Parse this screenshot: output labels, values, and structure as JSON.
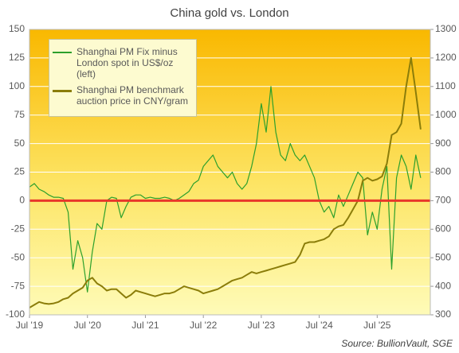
{
  "chart_data": {
    "type": "line",
    "title": "China gold vs. London",
    "source": "Source: BullionVault, SGE",
    "x": [
      "2019-07",
      "2019-08",
      "2019-09",
      "2019-10",
      "2019-11",
      "2019-12",
      "2020-01",
      "2020-02",
      "2020-03",
      "2020-04",
      "2020-05",
      "2020-06",
      "2020-07",
      "2020-08",
      "2020-09",
      "2020-10",
      "2020-11",
      "2020-12",
      "2021-01",
      "2021-02",
      "2021-03",
      "2021-04",
      "2021-05",
      "2021-06",
      "2021-07",
      "2021-08",
      "2021-09",
      "2021-10",
      "2021-11",
      "2021-12",
      "2022-01",
      "2022-02",
      "2022-03",
      "2022-04",
      "2022-05",
      "2022-06",
      "2022-07",
      "2022-08",
      "2022-09",
      "2022-10",
      "2022-11",
      "2022-12",
      "2023-01",
      "2023-02",
      "2023-03",
      "2023-04",
      "2023-05",
      "2023-06",
      "2023-07",
      "2023-08",
      "2023-09",
      "2023-10",
      "2023-11",
      "2023-12",
      "2024-01",
      "2024-02",
      "2024-03",
      "2024-04",
      "2024-05",
      "2024-06",
      "2024-07",
      "2024-08",
      "2024-09",
      "2024-10",
      "2024-11",
      "2024-12",
      "2025-01",
      "2025-02",
      "2025-03",
      "2025-04",
      "2025-05",
      "2025-06",
      "2025-07",
      "2025-08",
      "2025-09",
      "2025-10",
      "2025-11",
      "2025-12",
      "2026-01",
      "2026-02",
      "2026-03",
      "2026-04"
    ],
    "series": [
      {
        "name": "Shanghai PM Fix minus London spot in US$/oz (left)",
        "color": "#2ca02c",
        "axis": "y",
        "values": [
          12,
          15,
          10,
          8,
          5,
          3,
          3,
          2,
          -10,
          -60,
          -35,
          -50,
          -80,
          -45,
          -20,
          -25,
          0,
          3,
          2,
          -15,
          -5,
          3,
          5,
          5,
          2,
          3,
          2,
          2,
          3,
          2,
          0,
          2,
          5,
          8,
          15,
          18,
          30,
          35,
          40,
          30,
          25,
          20,
          25,
          15,
          10,
          15,
          30,
          50,
          85,
          60,
          100,
          60,
          40,
          35,
          50,
          40,
          35,
          40,
          30,
          20,
          0,
          -10,
          -5,
          -15,
          5,
          -5,
          5,
          15,
          25,
          20,
          -30,
          -10,
          -25,
          10,
          30,
          -60,
          20,
          40,
          30,
          10,
          40,
          20
        ]
      },
      {
        "name": "Shanghai PM benchmark auction price in CNY/gram",
        "color": "#8b7d0a",
        "axis": "y2",
        "values": [
          325,
          335,
          345,
          340,
          338,
          340,
          345,
          355,
          360,
          375,
          385,
          395,
          420,
          430,
          410,
          400,
          385,
          390,
          390,
          375,
          360,
          370,
          385,
          380,
          375,
          370,
          365,
          370,
          375,
          375,
          380,
          390,
          400,
          395,
          390,
          385,
          375,
          380,
          385,
          390,
          400,
          410,
          420,
          425,
          430,
          440,
          450,
          445,
          450,
          455,
          460,
          465,
          470,
          475,
          480,
          485,
          510,
          550,
          555,
          555,
          560,
          565,
          575,
          600,
          610,
          615,
          640,
          670,
          700,
          770,
          780,
          770,
          775,
          785,
          830,
          930,
          940,
          970,
          1100,
          1200,
          1080,
          950
        ]
      }
    ],
    "xlim": [
      "2019-07",
      "2026-06"
    ],
    "xticks": [
      {
        "value": "2019-07",
        "label": "Jul '19"
      },
      {
        "value": "2020-07",
        "label": "Jul '20"
      },
      {
        "value": "2021-07",
        "label": "Jul '21"
      },
      {
        "value": "2022-07",
        "label": "Jul '22"
      },
      {
        "value": "2023-07",
        "label": "Jul '23"
      },
      {
        "value": "2024-07",
        "label": "Jul '24"
      },
      {
        "value": "2025-07",
        "label": "Jul '25"
      }
    ],
    "ylim": [
      -100,
      150
    ],
    "yticks": [
      -100,
      -75,
      -50,
      -25,
      0,
      25,
      50,
      75,
      100,
      125,
      150
    ],
    "y2lim": [
      300,
      1300
    ],
    "y2ticks": [
      300,
      400,
      500,
      600,
      700,
      800,
      900,
      1000,
      1100,
      1200,
      1300
    ],
    "grid": true,
    "zero_line_color": "#e8372a",
    "legend": "top-left"
  }
}
